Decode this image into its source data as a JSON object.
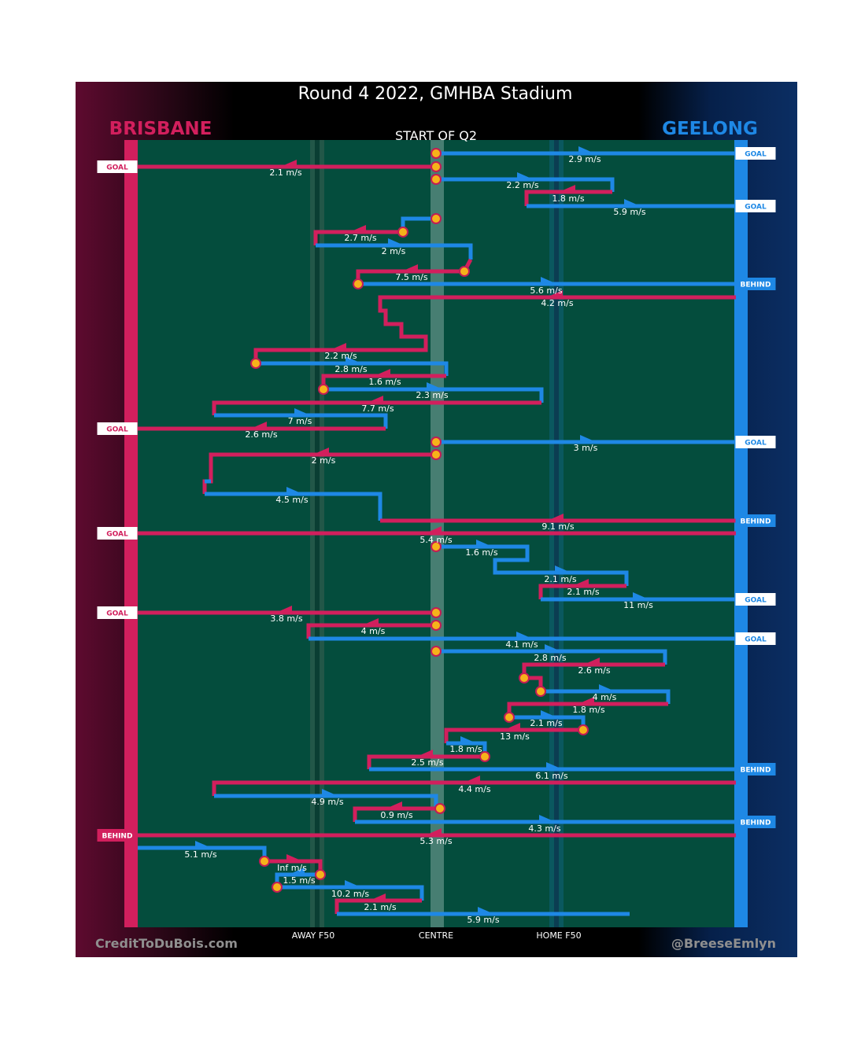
{
  "title": "Round 4 2022, GMHBA Stadium",
  "period_label": "START OF Q2",
  "teams": {
    "away": "BRISBANE",
    "home": "GEELONG"
  },
  "zones": {
    "away_f50": "AWAY F50",
    "centre": "CENTRE",
    "home_f50": "HOME F50"
  },
  "credits": {
    "left": "CreditToDuBois.com",
    "right": "@BreeseEmlyn"
  },
  "colors": {
    "brisbane": "#d21f5d",
    "geelong": "#1e88e5",
    "pitch": "#044d3d",
    "stoppage": "#f6b21a"
  },
  "icons": {
    "stoppage": "stoppage-circle-icon",
    "direction": "arrowhead-icon"
  },
  "chart_data": {
    "type": "line",
    "x_axis": {
      "range": [
        -1,
        1
      ],
      "ticks": [
        "AWAY F50",
        "CENTRE",
        "HOME F50"
      ]
    },
    "chains": [
      {
        "team": "GEELONG",
        "outcome": "GOAL",
        "labels": [
          "2.9 m/s"
        ]
      },
      {
        "team": "BRISBANE",
        "outcome": "GOAL",
        "labels": [
          "2.1 m/s"
        ]
      },
      {
        "team": "GEELONG",
        "outcome": "GOAL",
        "labels": [
          "2.2 m/s",
          "1.8 m/s",
          "5.9 m/s"
        ]
      },
      {
        "team": "GEELONG",
        "outcome": "BEHIND",
        "labels": [
          "2.7 m/s",
          "2 m/s",
          "7.5 m/s",
          "5.6 m/s"
        ]
      },
      {
        "team": "BRISBANE",
        "outcome": "GOAL",
        "labels": [
          "4.2 m/s",
          "2.2 m/s",
          "2.8 m/s",
          "1.6 m/s",
          "2.3 m/s",
          "7.7 m/s",
          "7 m/s",
          "2.6 m/s"
        ]
      },
      {
        "team": "GEELONG",
        "outcome": "GOAL",
        "labels": [
          "3 m/s"
        ]
      },
      {
        "team": "BRISBANE",
        "outcome": "",
        "labels": [
          "2 m/s",
          "4.5 m/s",
          "9.1 m/s"
        ]
      },
      {
        "team": "BRISBANE",
        "outcome": "GOAL",
        "labels": [
          "5.4 m/s"
        ]
      },
      {
        "team": "GEELONG",
        "outcome": "GOAL",
        "labels": [
          "1.6 m/s",
          "2.1 m/s",
          "2.1 m/s",
          "11 m/s"
        ]
      },
      {
        "team": "BRISBANE",
        "outcome": "GOAL",
        "labels": [
          "3.8 m/s"
        ]
      },
      {
        "team": "GEELONG",
        "outcome": "GOAL",
        "labels": [
          "4 m/s",
          "4.1 m/s"
        ]
      },
      {
        "team": "GEELONG",
        "outcome": "BEHIND",
        "labels": [
          "2.8 m/s",
          "2.6 m/s",
          "4 m/s",
          "1.8 m/s",
          "2.1 m/s",
          "13 m/s",
          "1.8 m/s",
          "2.5 m/s",
          "6.1 m/s"
        ]
      },
      {
        "team": "BRISBANE",
        "outcome": "BEHIND",
        "labels": [
          "4.4 m/s",
          "4.9 m/s",
          "0.9 m/s",
          "4.3 m/s",
          "5.3 m/s"
        ]
      },
      {
        "team": "GEELONG",
        "outcome": "",
        "labels": [
          "5.1 m/s",
          "Inf m/s",
          "1.5 m/s",
          "10.2 m/s",
          "2.1 m/s",
          "5.9 m/s"
        ]
      }
    ]
  }
}
